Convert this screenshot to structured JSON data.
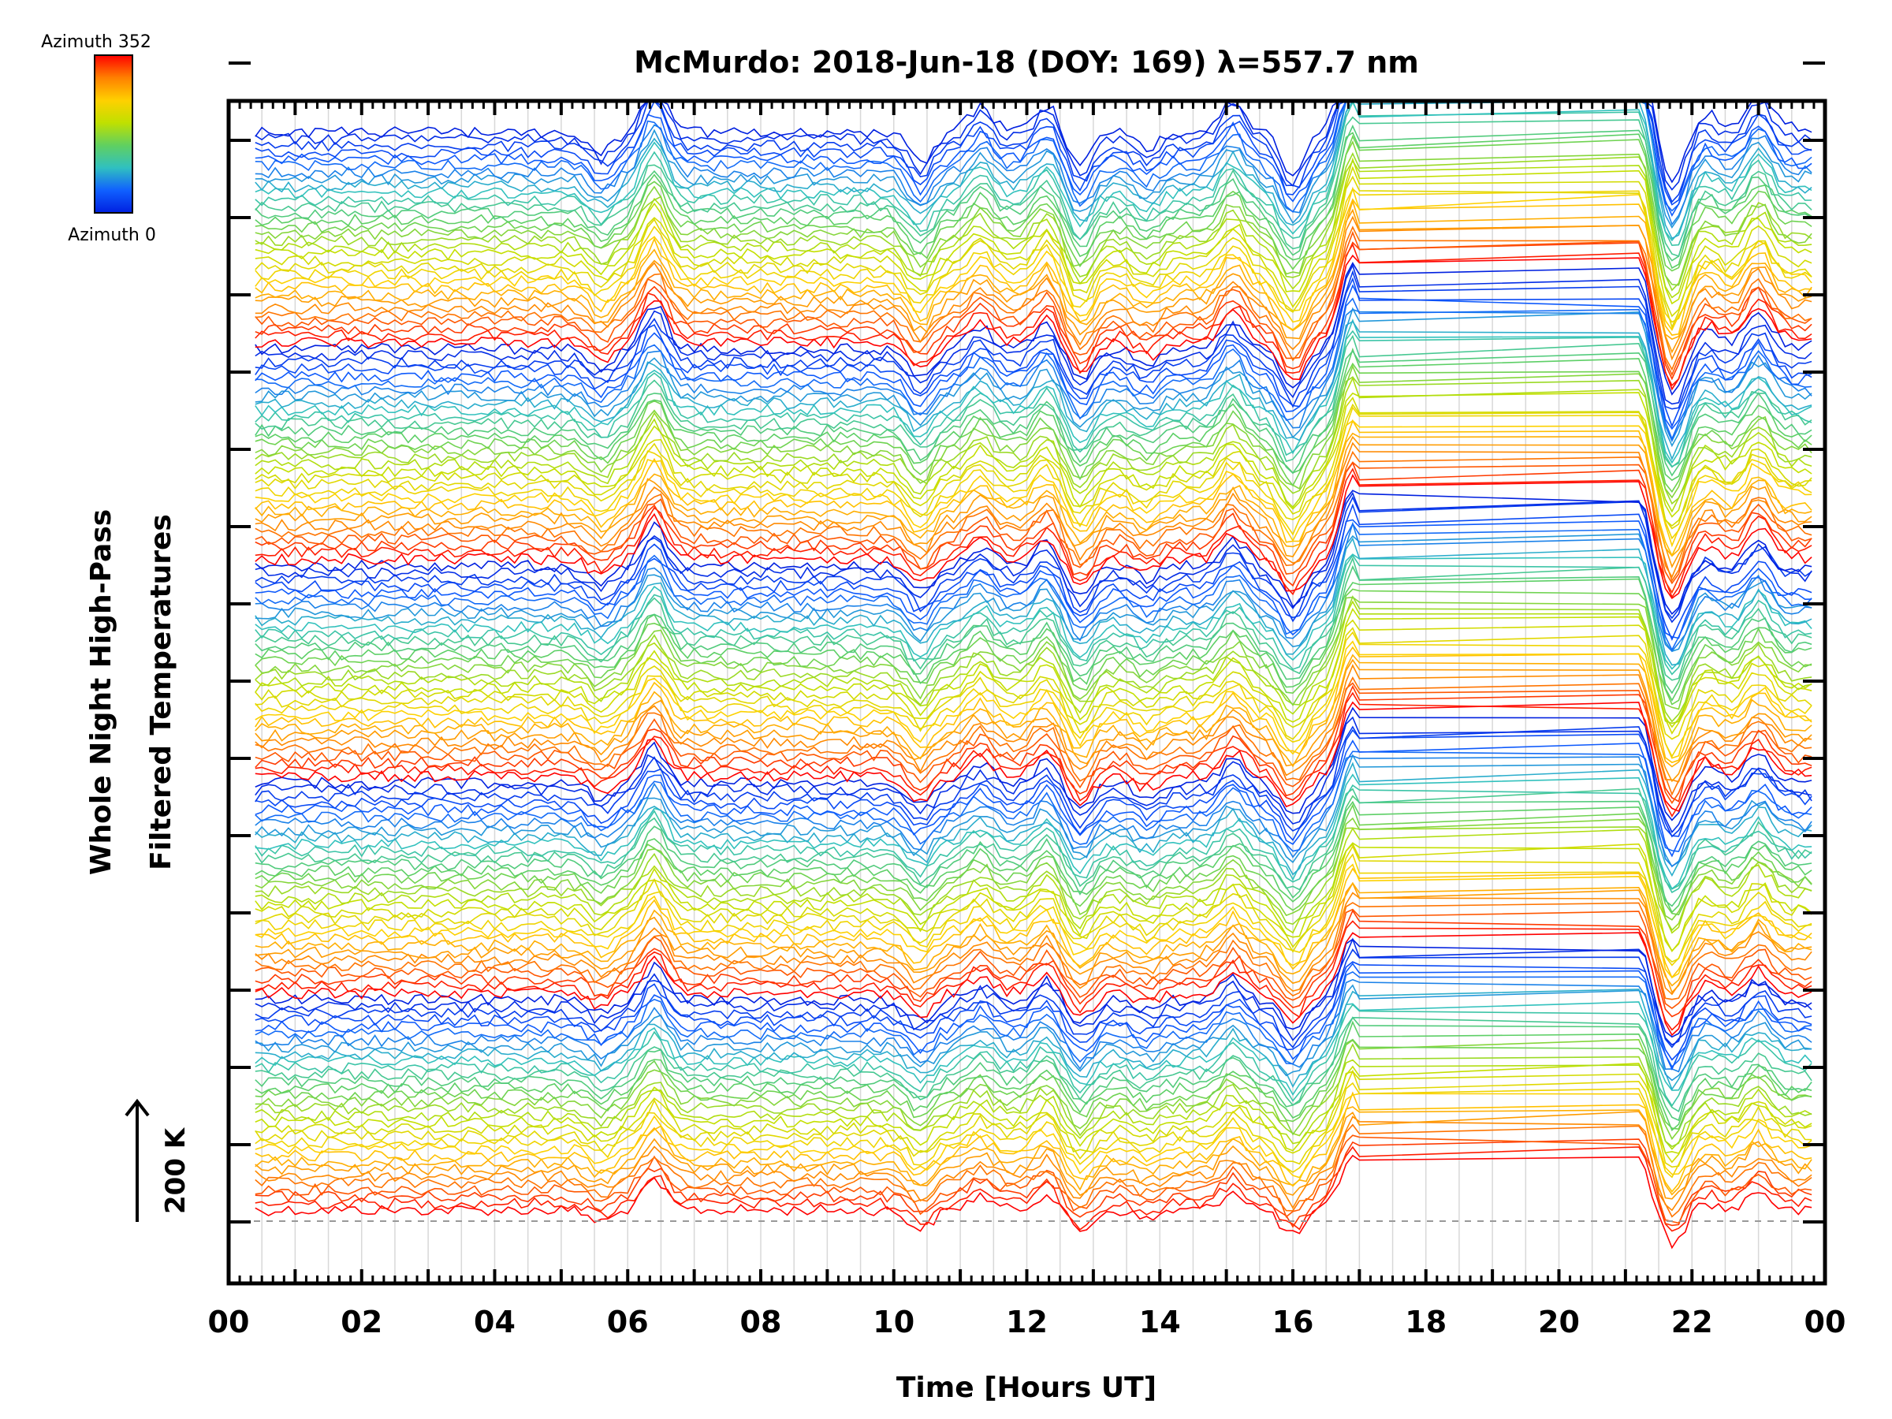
{
  "chart_data": {
    "type": "line",
    "title": "McMurdo: 2018-Jun-18 (DOY: 169) λ=557.7 nm",
    "xlabel": "Time [Hours UT]",
    "ylabel": [
      "Whole Night High-Pass",
      "Filtered Temperatures"
    ],
    "x_tick_labels": [
      "00",
      "02",
      "04",
      "06",
      "08",
      "10",
      "12",
      "14",
      "16",
      "18",
      "20",
      "22",
      "00"
    ],
    "xlim_hours": [
      0,
      24
    ],
    "x_minor_step_hours": 0.5,
    "y_ticks": 16,
    "grid": true,
    "scale_bar_label": "200 K",
    "colorbar": {
      "label_top": "Azimuth 352",
      "label_bottom": "Azimuth 0",
      "colors": [
        "#ff0000",
        "#ff8000",
        "#ffd000",
        "#c0e000",
        "#60d060",
        "#30c0c0",
        "#1060ff",
        "#0020e0"
      ]
    },
    "series_description": {
      "n_series": 160,
      "azimuth_range": [
        0,
        352
      ],
      "data_gap_hours": [
        17.0,
        21.2
      ],
      "data_start_hours": 0.4,
      "data_end_hours": 23.8,
      "common_features_hours": [
        5.6,
        6.4,
        10.4,
        11.3,
        12.3,
        12.8,
        13.8,
        15.1,
        16.0,
        16.9,
        21.2,
        21.7,
        22.2,
        23.0
      ]
    }
  }
}
